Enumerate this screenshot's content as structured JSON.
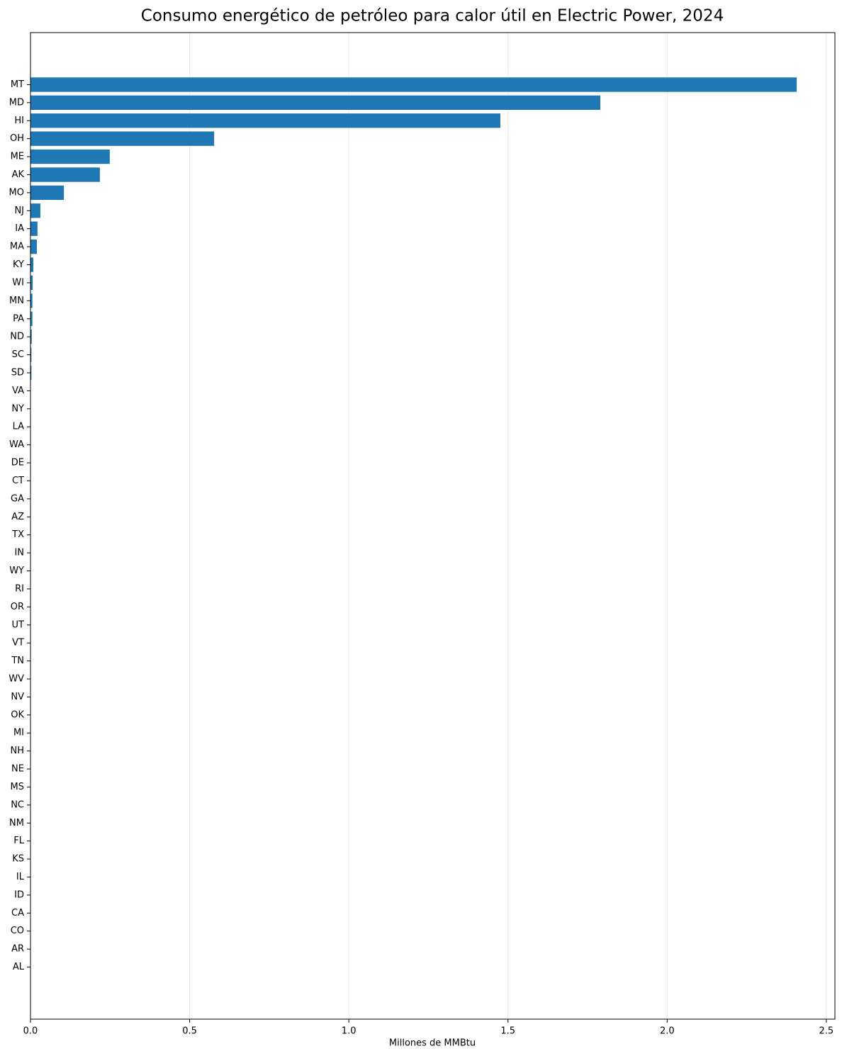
{
  "chart_data": {
    "type": "barh",
    "title": "Consumo energético de petróleo para calor útil en Electric Power, 2024",
    "xlabel": "Millones de MMBtu",
    "categories": [
      "MT",
      "MD",
      "HI",
      "OH",
      "ME",
      "AK",
      "MO",
      "NJ",
      "IA",
      "MA",
      "KY",
      "WI",
      "MN",
      "PA",
      "ND",
      "SC",
      "SD",
      "VA",
      "NY",
      "LA",
      "WA",
      "DE",
      "CT",
      "GA",
      "AZ",
      "TX",
      "IN",
      "WY",
      "RI",
      "OR",
      "UT",
      "VT",
      "TN",
      "WV",
      "NV",
      "OK",
      "MI",
      "NH",
      "NE",
      "MS",
      "NC",
      "NM",
      "FL",
      "KS",
      "IL",
      "ID",
      "CA",
      "CO",
      "AR",
      "AL"
    ],
    "values": [
      2.407,
      1.79,
      1.476,
      0.577,
      0.249,
      0.218,
      0.105,
      0.031,
      0.022,
      0.02,
      0.009,
      0.007,
      0.006,
      0.006,
      0.004,
      0.003,
      0.003,
      0,
      0,
      0,
      0,
      0,
      0,
      0,
      0,
      0,
      0,
      0,
      0,
      0,
      0,
      0,
      0,
      0,
      0,
      0,
      0,
      0,
      0,
      0,
      0,
      0,
      0,
      0,
      0,
      0,
      0,
      0,
      0,
      0
    ],
    "color": "#1f77b4",
    "xlim": [
      0,
      2.527
    ],
    "xticks": [
      {
        "value": 0,
        "label": "0.0"
      },
      0.5,
      {
        "value": 1,
        "label": "1.0"
      },
      1.5,
      {
        "value": 2,
        "label": "2.0"
      },
      2.5
    ],
    "grid": true
  }
}
